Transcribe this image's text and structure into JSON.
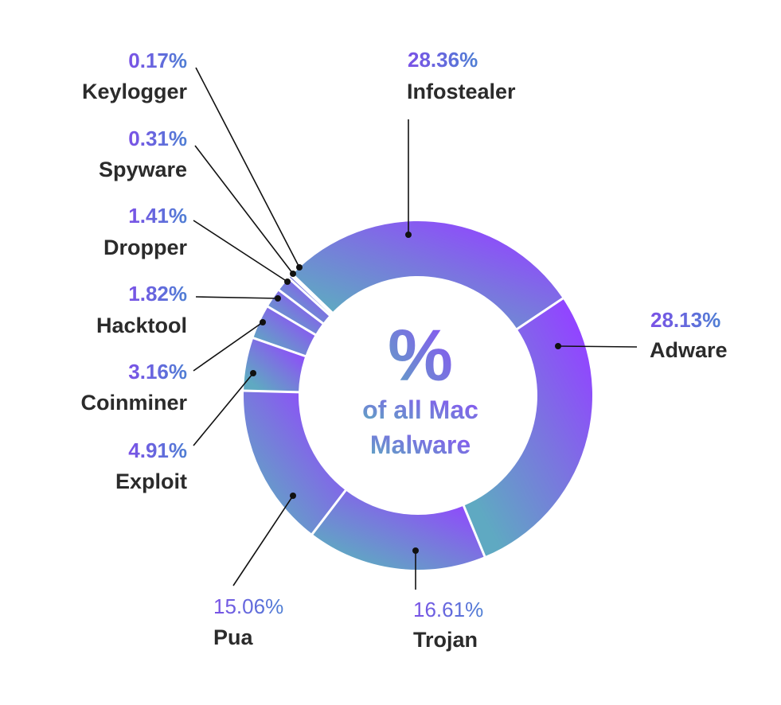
{
  "chart_data": {
    "type": "pie",
    "variant": "donut",
    "center_text": {
      "symbol": "%",
      "line1": "of all Mac",
      "line2": "Malware"
    },
    "unit": "%",
    "slices": [
      {
        "label": "Infostealer",
        "value": 28.36,
        "display": "28.36%"
      },
      {
        "label": "Adware",
        "value": 28.13,
        "display": "28.13%"
      },
      {
        "label": "Trojan",
        "value": 16.61,
        "display": "16.61%"
      },
      {
        "label": "Pua",
        "value": 15.06,
        "display": "15.06%"
      },
      {
        "label": "Exploit",
        "value": 4.91,
        "display": "4.91%"
      },
      {
        "label": "Coinminer",
        "value": 3.16,
        "display": "3.16%"
      },
      {
        "label": "Hacktool",
        "value": 1.82,
        "display": "1.82%"
      },
      {
        "label": "Dropper",
        "value": 1.41,
        "display": "1.41%"
      },
      {
        "label": "Spyware",
        "value": 0.31,
        "display": "0.31%"
      },
      {
        "label": "Keylogger",
        "value": 0.17,
        "display": "0.17%"
      }
    ],
    "colors": {
      "gradient_start": "#9146ff",
      "gradient_end": "#5fa9c2",
      "separator": "#ffffff",
      "label_text": "#2b2b2b"
    },
    "legend": "none, direct labels with leader lines"
  }
}
